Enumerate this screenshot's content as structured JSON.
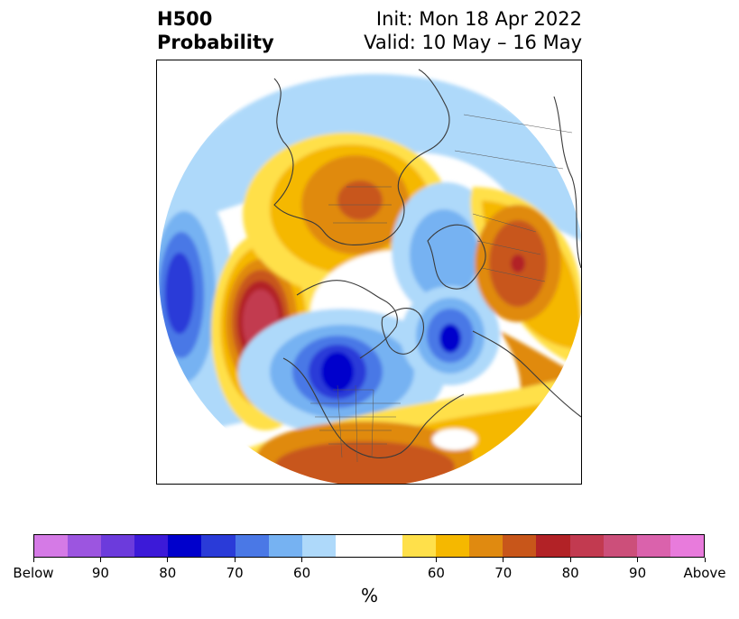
{
  "title": {
    "left_line1": "H500",
    "left_line2": "Probability",
    "right_line1": "Init: Mon 18 Apr 2022",
    "right_line2": "Valid: 10 May – 16 May"
  },
  "colorbar": {
    "unit": "%",
    "colors": [
      "#d57ae6",
      "#9c55e0",
      "#6c3bdc",
      "#3c1ad8",
      "#0000cc",
      "#2a3bd8",
      "#4a78e6",
      "#76b2f2",
      "#aed9fa",
      "#ffffff",
      "#ffe04a",
      "#f5b800",
      "#e08a10",
      "#c8561a",
      "#b22226",
      "#c23a50",
      "#cc4f7a",
      "#da62ac",
      "#e87bdc"
    ],
    "labels": [
      "Below",
      "90",
      "80",
      "70",
      "60",
      "60",
      "70",
      "80",
      "90",
      "Above"
    ]
  },
  "map": {
    "projection": "north polar stereographic",
    "colors": {
      "blue_60": "#aed9fa",
      "blue_70": "#76b2f2",
      "blue_75": "#4a78e6",
      "blue_80": "#2a3bd8",
      "blue_85": "#0000cc",
      "yellow_60": "#ffe04a",
      "orange_65": "#f5b800",
      "orange_70": "#e08a10",
      "rust_75": "#c8561a",
      "red_80": "#b22226",
      "rose_85": "#c23a50"
    }
  }
}
